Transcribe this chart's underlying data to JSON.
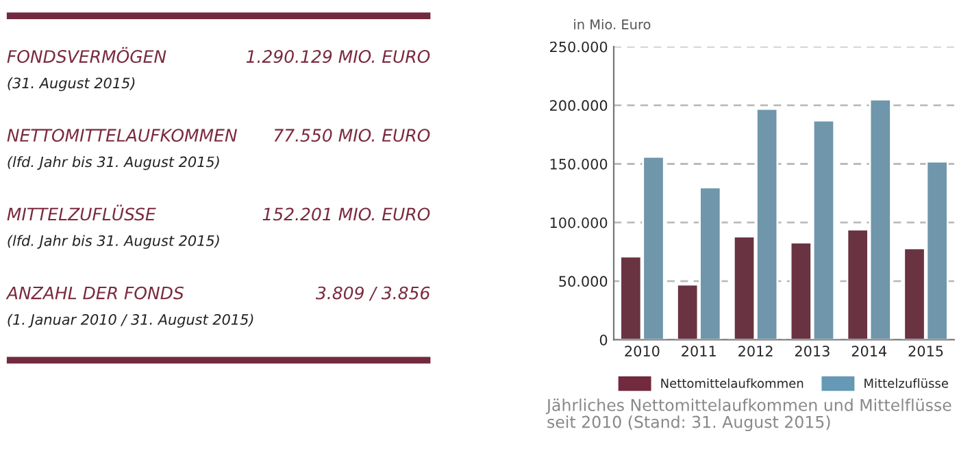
{
  "chart_data": [
    {
      "type": "other",
      "annotations": [
        "FONDSVERMÖGEN",
        "1.290.129 MIO. EURO",
        "(31. August 2015)",
        "NETTOMITTELAUFKOMMEN",
        "77.550 MIO. EURO",
        "(lfd. Jahr bis 31. August 2015)",
        "MITTELZUFLÜSSE",
        "152.201 MIO. EURO",
        "(lfd. Jahr bis 31. August 2015)",
        "ANZAHL DER FONDS",
        "3.809 / 3.856",
        "(1. Januar 2010 / 31. August 2015)"
      ]
    },
    {
      "type": "bar",
      "ylabel": "in Mio. Euro",
      "categories": [
        "2010",
        "2011",
        "2012",
        "2013",
        "2014",
        "2015"
      ],
      "series": [
        {
          "name": "Nettomittelaufkommen",
          "color": "#722a3e",
          "values": [
            71000,
            47000,
            88000,
            83000,
            94000,
            78000
          ]
        },
        {
          "name": "Mittelzuflüsse",
          "color": "#6599b5",
          "values": [
            156000,
            130000,
            197000,
            187000,
            205000,
            152000
          ]
        }
      ],
      "ylim": [
        0,
        250000
      ],
      "yticks": [
        {
          "value": 0,
          "label": "0"
        },
        {
          "value": 50000,
          "label": "50.000"
        },
        {
          "value": 100000,
          "label": "100.000"
        },
        {
          "value": 150000,
          "label": "150.000"
        },
        {
          "value": 200000,
          "label": "200.000"
        },
        {
          "value": 250000,
          "label": "250.000"
        }
      ],
      "grid": "y",
      "legend": "bottom",
      "annotations": [
        "Jährliches Nettomittelaufkommen und Mittelflüsse seit 2010 (Stand: 31. August 2015)"
      ]
    }
  ]
}
